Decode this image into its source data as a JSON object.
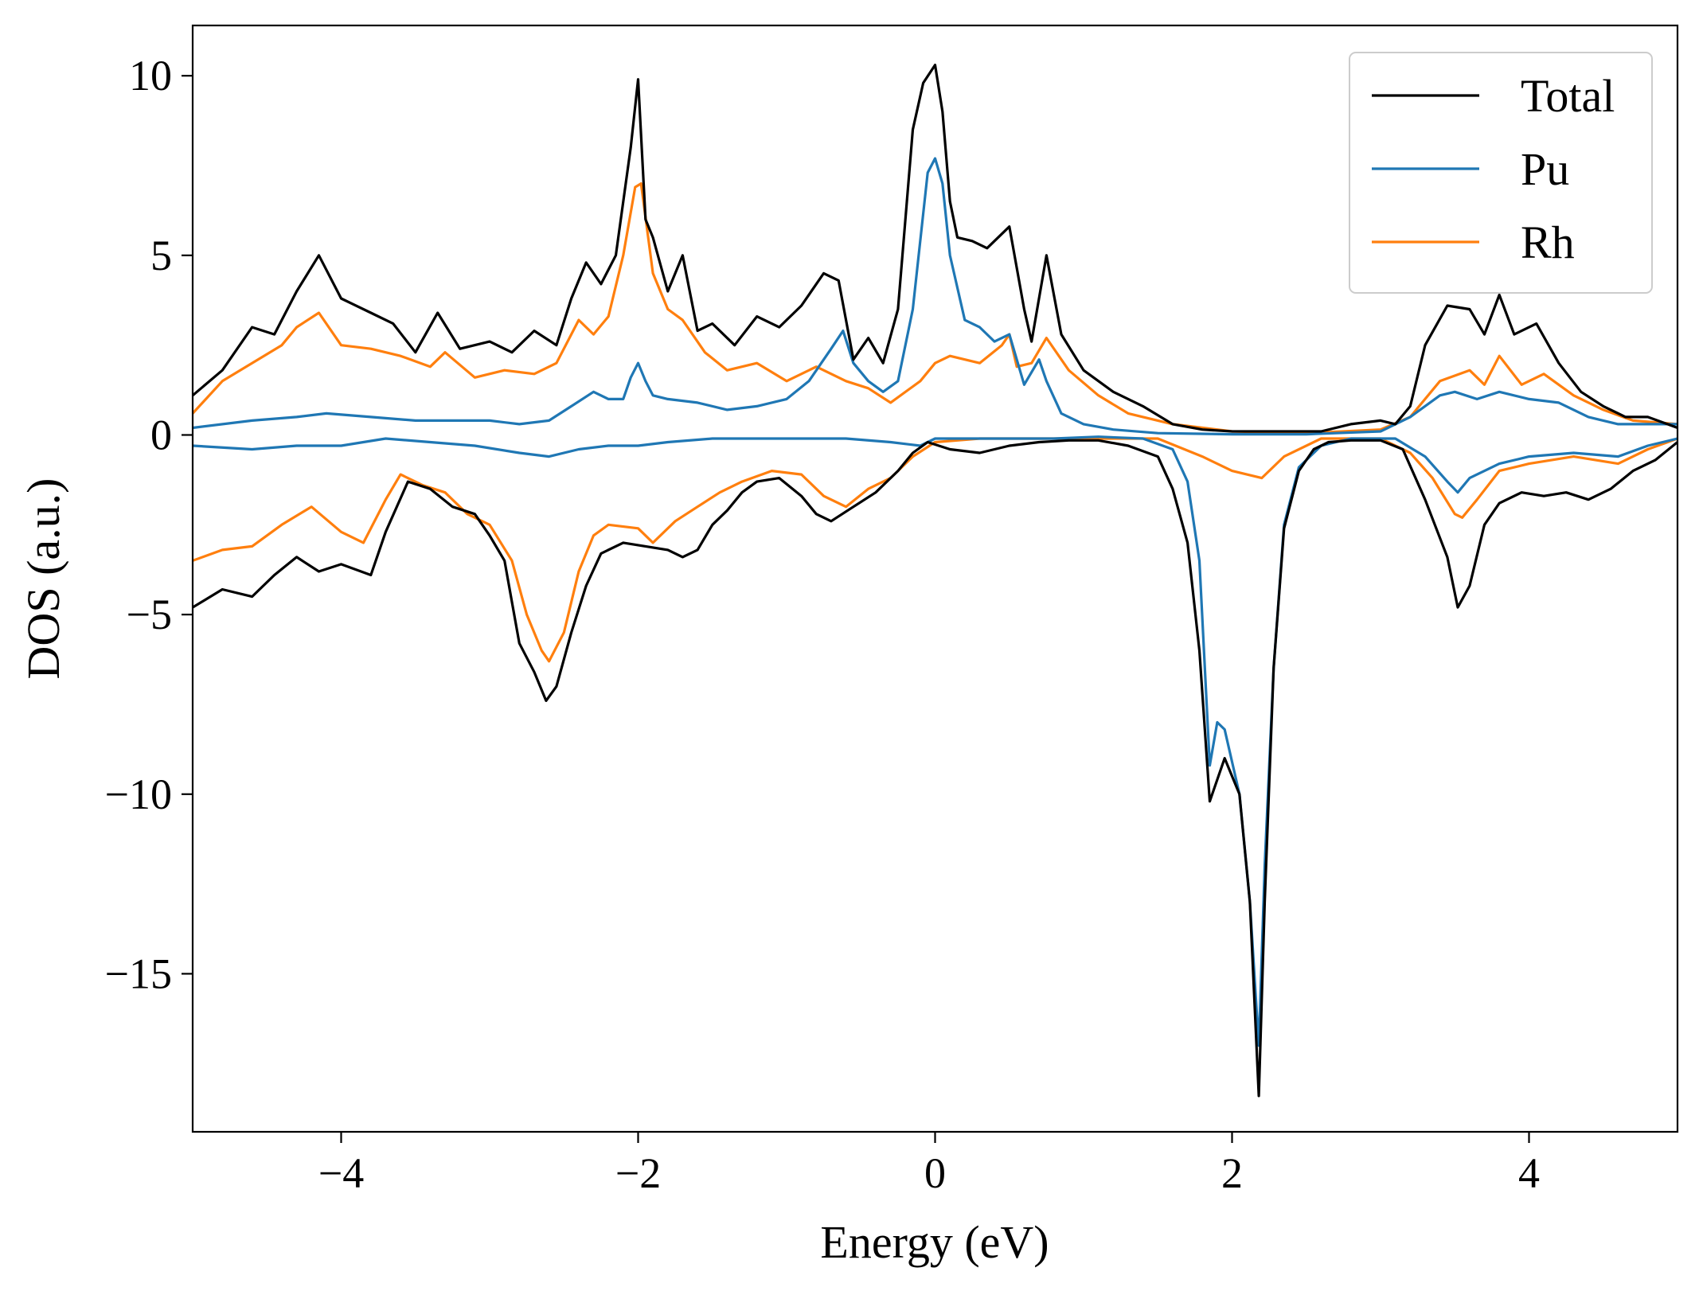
{
  "chart_data": {
    "type": "line",
    "xlabel": "Energy (eV)",
    "ylabel": "DOS (a.u.)",
    "xlim": [
      -5,
      5
    ],
    "ylim": [
      -19.4,
      11.4
    ],
    "x_ticks": [
      -4,
      -2,
      0,
      2,
      4
    ],
    "x_tick_labels": [
      "−4",
      "−2",
      "0",
      "2",
      "4"
    ],
    "y_ticks": [
      -15,
      -10,
      -5,
      0,
      5,
      10
    ],
    "y_tick_labels": [
      "−15",
      "−10",
      "−5",
      "0",
      "5",
      "10"
    ],
    "grid": false,
    "legend_position": "top-right",
    "series": [
      {
        "name": "Total",
        "color": "#000000",
        "spin_up": {
          "x": [
            -5.0,
            -4.8,
            -4.6,
            -4.45,
            -4.3,
            -4.15,
            -4.0,
            -3.8,
            -3.65,
            -3.5,
            -3.35,
            -3.2,
            -3.0,
            -2.85,
            -2.7,
            -2.55,
            -2.45,
            -2.35,
            -2.25,
            -2.15,
            -2.05,
            -2.0,
            -1.95,
            -1.9,
            -1.8,
            -1.7,
            -1.6,
            -1.5,
            -1.35,
            -1.2,
            -1.05,
            -0.9,
            -0.75,
            -0.65,
            -0.55,
            -0.45,
            -0.35,
            -0.25,
            -0.15,
            -0.08,
            0.0,
            0.05,
            0.1,
            0.15,
            0.25,
            0.35,
            0.5,
            0.6,
            0.65,
            0.75,
            0.85,
            1.0,
            1.2,
            1.4,
            1.6,
            1.8,
            2.0,
            2.2,
            2.4,
            2.6,
            2.8,
            3.0,
            3.1,
            3.2,
            3.3,
            3.45,
            3.6,
            3.7,
            3.8,
            3.9,
            4.05,
            4.2,
            4.35,
            4.5,
            4.65,
            4.8,
            5.0
          ],
          "y": [
            1.1,
            1.8,
            3.0,
            2.8,
            4.0,
            5.0,
            3.8,
            3.4,
            3.1,
            2.3,
            3.4,
            2.4,
            2.6,
            2.3,
            2.9,
            2.5,
            3.8,
            4.8,
            4.2,
            5.0,
            8.0,
            9.9,
            6.0,
            5.5,
            4.0,
            5.0,
            2.9,
            3.1,
            2.5,
            3.3,
            3.0,
            3.6,
            4.5,
            4.3,
            2.1,
            2.7,
            2.0,
            3.5,
            8.5,
            9.8,
            10.3,
            9.0,
            6.5,
            5.5,
            5.4,
            5.2,
            5.8,
            3.5,
            2.6,
            5.0,
            2.8,
            1.8,
            1.2,
            0.8,
            0.3,
            0.15,
            0.1,
            0.1,
            0.1,
            0.1,
            0.3,
            0.4,
            0.3,
            0.8,
            2.5,
            3.6,
            3.5,
            2.8,
            3.9,
            2.8,
            3.1,
            2.0,
            1.2,
            0.8,
            0.5,
            0.5,
            0.2
          ]
        },
        "spin_down": {
          "x": [
            -5.0,
            -4.8,
            -4.6,
            -4.45,
            -4.3,
            -4.15,
            -4.0,
            -3.8,
            -3.7,
            -3.55,
            -3.4,
            -3.25,
            -3.1,
            -3.0,
            -2.9,
            -2.8,
            -2.7,
            -2.62,
            -2.55,
            -2.45,
            -2.35,
            -2.25,
            -2.1,
            -1.95,
            -1.8,
            -1.7,
            -1.6,
            -1.5,
            -1.4,
            -1.3,
            -1.2,
            -1.05,
            -0.9,
            -0.8,
            -0.7,
            -0.55,
            -0.4,
            -0.25,
            -0.15,
            -0.05,
            0.1,
            0.3,
            0.5,
            0.7,
            0.9,
            1.1,
            1.3,
            1.5,
            1.6,
            1.7,
            1.78,
            1.85,
            1.95,
            2.05,
            2.12,
            2.18,
            2.22,
            2.28,
            2.35,
            2.45,
            2.55,
            2.65,
            2.8,
            3.0,
            3.15,
            3.3,
            3.45,
            3.52,
            3.6,
            3.7,
            3.8,
            3.95,
            4.1,
            4.25,
            4.4,
            4.55,
            4.7,
            4.85,
            5.0
          ],
          "y": [
            -4.8,
            -4.3,
            -4.5,
            -3.9,
            -3.4,
            -3.8,
            -3.6,
            -3.9,
            -2.7,
            -1.3,
            -1.5,
            -2.0,
            -2.2,
            -2.8,
            -3.5,
            -5.8,
            -6.6,
            -7.4,
            -7.0,
            -5.5,
            -4.2,
            -3.3,
            -3.0,
            -3.1,
            -3.2,
            -3.4,
            -3.2,
            -2.5,
            -2.1,
            -1.6,
            -1.3,
            -1.2,
            -1.7,
            -2.2,
            -2.4,
            -2.0,
            -1.6,
            -1.0,
            -0.5,
            -0.2,
            -0.4,
            -0.5,
            -0.3,
            -0.2,
            -0.15,
            -0.15,
            -0.3,
            -0.6,
            -1.5,
            -3.0,
            -6.0,
            -10.2,
            -9.0,
            -10.0,
            -13.0,
            -18.4,
            -13.0,
            -6.5,
            -2.6,
            -1.0,
            -0.4,
            -0.2,
            -0.15,
            -0.15,
            -0.4,
            -1.8,
            -3.4,
            -4.8,
            -4.2,
            -2.5,
            -1.9,
            -1.6,
            -1.7,
            -1.6,
            -1.8,
            -1.5,
            -1.0,
            -0.7,
            -0.2
          ]
        }
      },
      {
        "name": "Pu",
        "color": "#1f77b4",
        "spin_up": {
          "x": [
            -5.0,
            -4.6,
            -4.3,
            -4.1,
            -3.8,
            -3.5,
            -3.2,
            -3.0,
            -2.8,
            -2.6,
            -2.45,
            -2.3,
            -2.2,
            -2.1,
            -2.05,
            -2.0,
            -1.95,
            -1.9,
            -1.8,
            -1.6,
            -1.4,
            -1.2,
            -1.0,
            -0.85,
            -0.7,
            -0.62,
            -0.55,
            -0.45,
            -0.35,
            -0.25,
            -0.15,
            -0.05,
            0.0,
            0.05,
            0.1,
            0.2,
            0.3,
            0.4,
            0.5,
            0.6,
            0.7,
            0.75,
            0.85,
            1.0,
            1.2,
            1.5,
            2.0,
            2.5,
            3.0,
            3.2,
            3.4,
            3.5,
            3.65,
            3.8,
            4.0,
            4.2,
            4.4,
            4.6,
            4.8,
            5.0
          ],
          "y": [
            0.2,
            0.4,
            0.5,
            0.6,
            0.5,
            0.4,
            0.4,
            0.4,
            0.3,
            0.4,
            0.8,
            1.2,
            1.0,
            1.0,
            1.6,
            2.0,
            1.5,
            1.1,
            1.0,
            0.9,
            0.7,
            0.8,
            1.0,
            1.5,
            2.4,
            2.9,
            2.0,
            1.5,
            1.2,
            1.5,
            3.5,
            7.3,
            7.7,
            7.0,
            5.0,
            3.2,
            3.0,
            2.6,
            2.8,
            1.4,
            2.1,
            1.5,
            0.6,
            0.3,
            0.15,
            0.05,
            0.02,
            0.02,
            0.1,
            0.5,
            1.1,
            1.2,
            1.0,
            1.2,
            1.0,
            0.9,
            0.5,
            0.3,
            0.3,
            0.3
          ]
        },
        "spin_down": {
          "x": [
            -5.0,
            -4.6,
            -4.3,
            -4.0,
            -3.7,
            -3.4,
            -3.1,
            -2.8,
            -2.6,
            -2.4,
            -2.2,
            -2.0,
            -1.8,
            -1.5,
            -1.2,
            -0.9,
            -0.6,
            -0.3,
            -0.1,
            0.0,
            0.2,
            0.5,
            0.8,
            1.1,
            1.4,
            1.6,
            1.7,
            1.78,
            1.85,
            1.9,
            1.95,
            2.05,
            2.12,
            2.18,
            2.22,
            2.28,
            2.35,
            2.45,
            2.6,
            2.8,
            3.1,
            3.3,
            3.45,
            3.52,
            3.6,
            3.8,
            4.0,
            4.3,
            4.6,
            4.8,
            5.0
          ],
          "y": [
            -0.3,
            -0.4,
            -0.3,
            -0.3,
            -0.1,
            -0.2,
            -0.3,
            -0.5,
            -0.6,
            -0.4,
            -0.3,
            -0.3,
            -0.2,
            -0.1,
            -0.1,
            -0.1,
            -0.1,
            -0.2,
            -0.3,
            -0.1,
            -0.1,
            -0.1,
            -0.1,
            -0.05,
            -0.1,
            -0.4,
            -1.3,
            -3.5,
            -9.2,
            -8.0,
            -8.2,
            -10.0,
            -13.0,
            -17.0,
            -12.0,
            -6.5,
            -2.5,
            -0.9,
            -0.3,
            -0.1,
            -0.1,
            -0.6,
            -1.3,
            -1.6,
            -1.2,
            -0.8,
            -0.6,
            -0.5,
            -0.6,
            -0.3,
            -0.1
          ]
        }
      },
      {
        "name": "Rh",
        "color": "#ff7f0e",
        "spin_up": {
          "x": [
            -5.0,
            -4.8,
            -4.6,
            -4.4,
            -4.3,
            -4.15,
            -4.0,
            -3.8,
            -3.6,
            -3.4,
            -3.3,
            -3.1,
            -2.9,
            -2.7,
            -2.55,
            -2.4,
            -2.3,
            -2.2,
            -2.1,
            -2.02,
            -1.98,
            -1.9,
            -1.8,
            -1.7,
            -1.55,
            -1.4,
            -1.2,
            -1.0,
            -0.8,
            -0.6,
            -0.45,
            -0.3,
            -0.1,
            0.0,
            0.1,
            0.3,
            0.45,
            0.5,
            0.55,
            0.65,
            0.75,
            0.9,
            1.1,
            1.3,
            1.6,
            2.0,
            2.5,
            3.0,
            3.2,
            3.4,
            3.6,
            3.7,
            3.8,
            3.95,
            4.1,
            4.3,
            4.5,
            4.7,
            5.0
          ],
          "y": [
            0.6,
            1.5,
            2.0,
            2.5,
            3.0,
            3.4,
            2.5,
            2.4,
            2.2,
            1.9,
            2.3,
            1.6,
            1.8,
            1.7,
            2.0,
            3.2,
            2.8,
            3.3,
            5.0,
            6.9,
            7.0,
            4.5,
            3.5,
            3.2,
            2.3,
            1.8,
            2.0,
            1.5,
            1.9,
            1.5,
            1.3,
            0.9,
            1.5,
            2.0,
            2.2,
            2.0,
            2.5,
            2.8,
            1.9,
            2.0,
            2.7,
            1.8,
            1.1,
            0.6,
            0.3,
            0.1,
            0.05,
            0.15,
            0.5,
            1.5,
            1.8,
            1.4,
            2.2,
            1.4,
            1.7,
            1.1,
            0.7,
            0.4,
            0.3
          ]
        },
        "spin_down": {
          "x": [
            -5.0,
            -4.8,
            -4.6,
            -4.4,
            -4.2,
            -4.0,
            -3.85,
            -3.7,
            -3.6,
            -3.45,
            -3.3,
            -3.15,
            -3.0,
            -2.85,
            -2.75,
            -2.65,
            -2.6,
            -2.5,
            -2.4,
            -2.3,
            -2.2,
            -2.0,
            -1.9,
            -1.75,
            -1.6,
            -1.45,
            -1.3,
            -1.1,
            -0.9,
            -0.75,
            -0.6,
            -0.45,
            -0.3,
            -0.15,
            0.0,
            0.3,
            0.6,
            0.9,
            1.2,
            1.5,
            1.8,
            2.0,
            2.2,
            2.35,
            2.6,
            2.8,
            3.0,
            3.2,
            3.35,
            3.5,
            3.55,
            3.65,
            3.8,
            4.0,
            4.3,
            4.6,
            4.8,
            5.0
          ],
          "y": [
            -3.5,
            -3.2,
            -3.1,
            -2.5,
            -2.0,
            -2.7,
            -3.0,
            -1.8,
            -1.1,
            -1.4,
            -1.6,
            -2.2,
            -2.5,
            -3.5,
            -5.0,
            -6.0,
            -6.3,
            -5.5,
            -3.8,
            -2.8,
            -2.5,
            -2.6,
            -3.0,
            -2.4,
            -2.0,
            -1.6,
            -1.3,
            -1.0,
            -1.1,
            -1.7,
            -2.0,
            -1.5,
            -1.2,
            -0.6,
            -0.2,
            -0.1,
            -0.1,
            -0.1,
            -0.1,
            -0.1,
            -0.6,
            -1.0,
            -1.2,
            -0.6,
            -0.1,
            -0.1,
            -0.1,
            -0.5,
            -1.2,
            -2.2,
            -2.3,
            -1.8,
            -1.0,
            -0.8,
            -0.6,
            -0.8,
            -0.4,
            -0.1
          ]
        }
      }
    ]
  }
}
